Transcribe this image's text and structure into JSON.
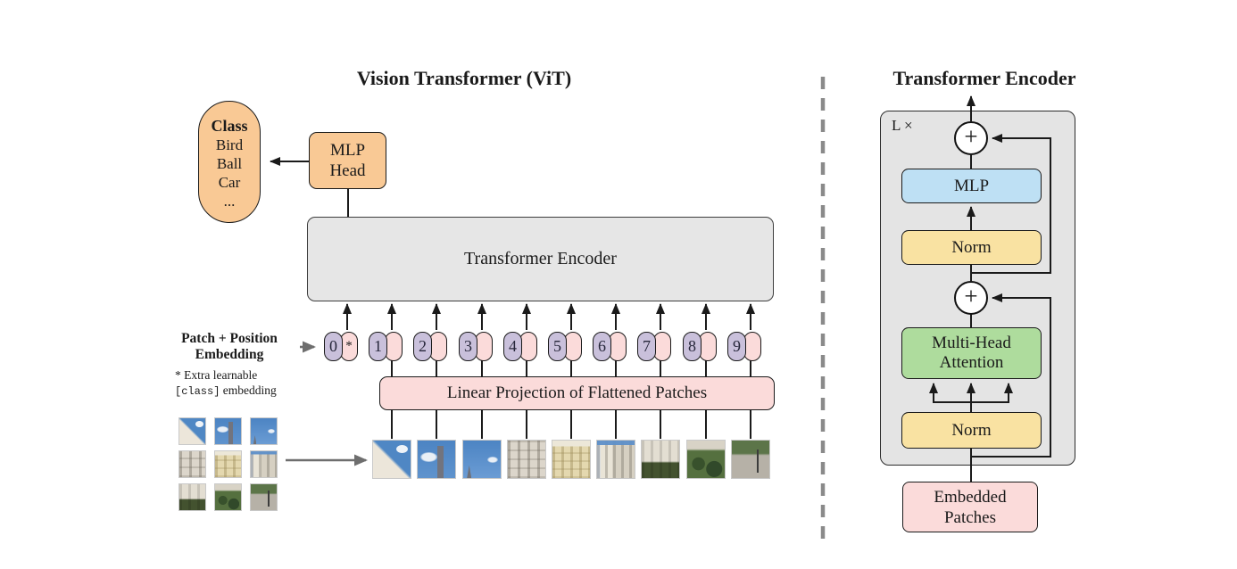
{
  "colors": {
    "orange": "#F9C995",
    "pink": "#FBDBDA",
    "purple": "#C9C0DB",
    "blue": "#BEE0F4",
    "yellow": "#F9E2A2",
    "green": "#AEDC9D",
    "box_gray": "#E6E6E6",
    "panel_gray": "#E4E4E4",
    "line": "#1a1a1a",
    "gray_arrow": "#6e6e6e",
    "divider": "#8a8a8a"
  },
  "left": {
    "title": "Vision Transformer (ViT)",
    "class_pill": {
      "header": "Class",
      "items": [
        "Bird",
        "Ball",
        "Car",
        "..."
      ]
    },
    "mlp_head": "MLP\nHead",
    "encoder": "Transformer Encoder",
    "patch_position_label": "Patch + Position\nEmbedding",
    "footnote": {
      "line1": "* Extra learnable",
      "code": "[class]",
      "rest": " embedding"
    },
    "linear_projection": "Linear Projection of Flattened Patches",
    "tokens": [
      "0",
      "1",
      "2",
      "3",
      "4",
      "5",
      "6",
      "7",
      "8",
      "9"
    ],
    "class_token_mark": "*",
    "patches": [
      "building-sky",
      "tower-sky",
      "sky",
      "facade",
      "facade-yellow",
      "tower-facade",
      "building-green",
      "bushes",
      "path"
    ]
  },
  "right": {
    "title": "Transformer Encoder",
    "loop_label": "L ×",
    "plus": "+",
    "mlp": "MLP",
    "norm_top": "Norm",
    "attention": "Multi-Head\nAttention",
    "norm_bottom": "Norm",
    "embedded": "Embedded\nPatches"
  }
}
